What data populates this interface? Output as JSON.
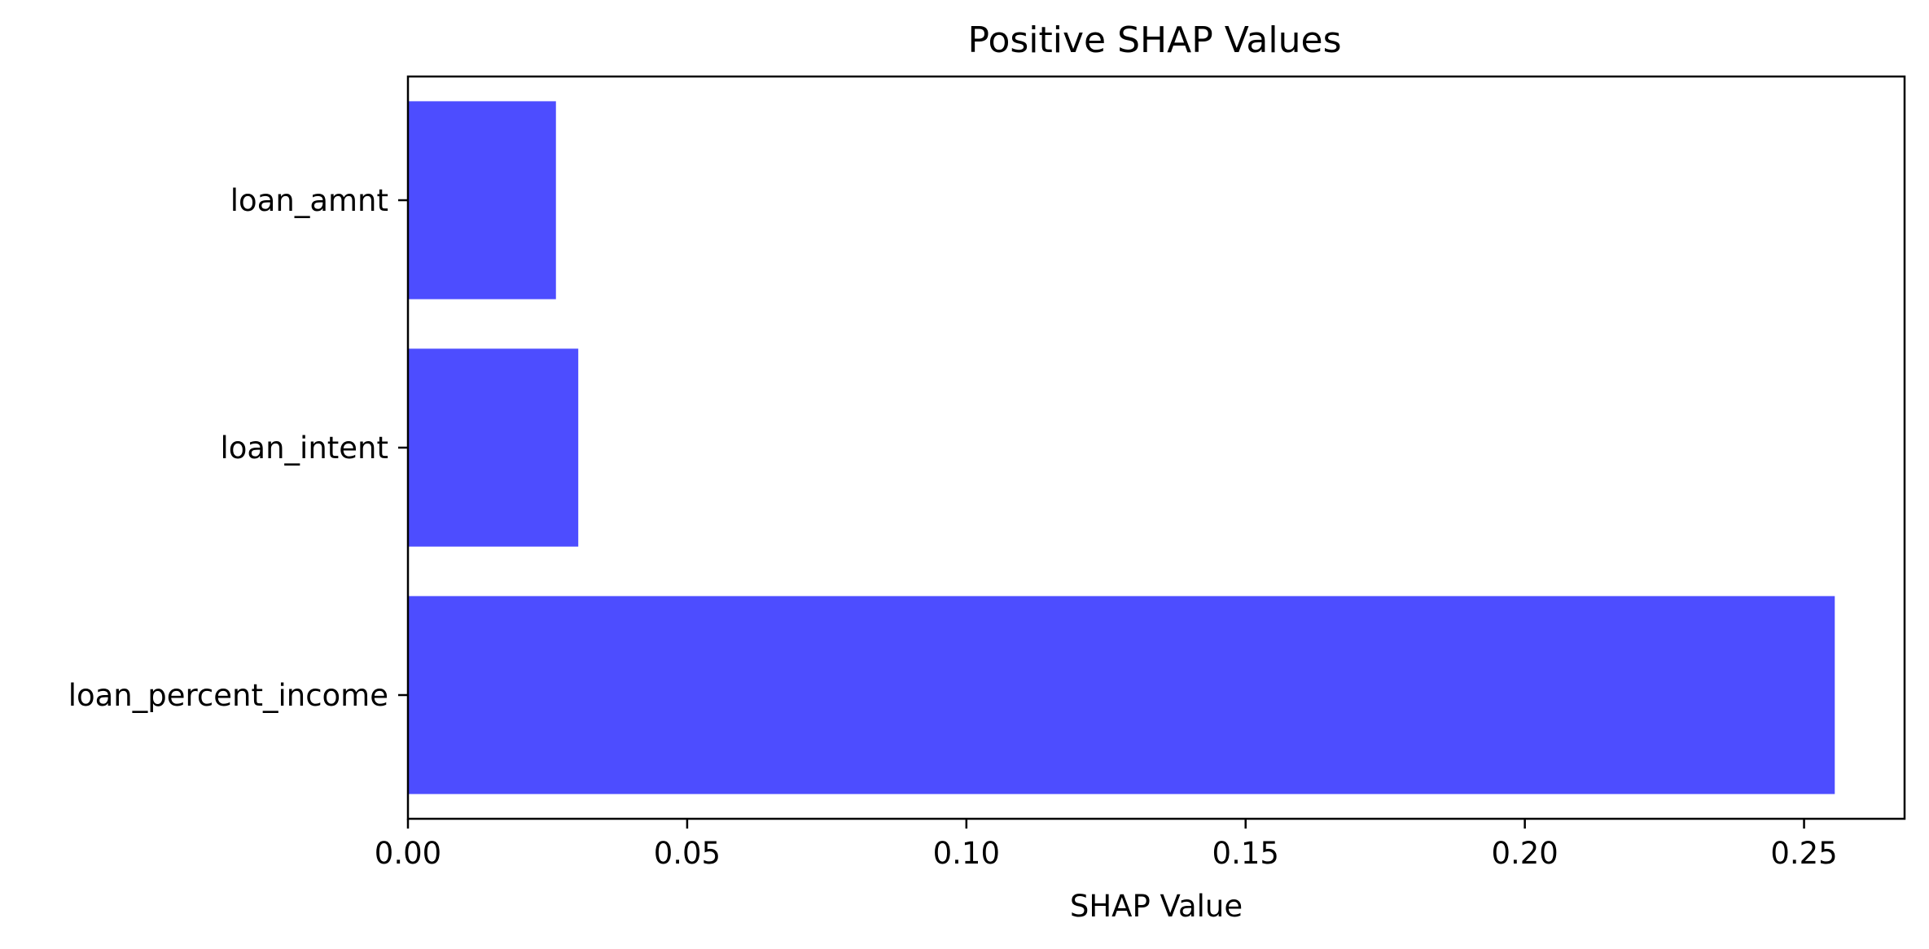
{
  "chart_data": {
    "type": "bar",
    "orientation": "horizontal",
    "title": "Positive SHAP Values",
    "xlabel": "SHAP Value",
    "ylabel": "",
    "categories": [
      "loan_amnt",
      "loan_intent",
      "loan_percent_income"
    ],
    "values": [
      0.0265,
      0.0305,
      0.2555
    ],
    "xlim": [
      0,
      0.268
    ],
    "xticks": [
      "0.00",
      "0.05",
      "0.10",
      "0.15",
      "0.20",
      "0.25"
    ],
    "xtick_values": [
      0,
      0.05,
      0.1,
      0.15,
      0.2,
      0.25
    ],
    "bar_color": "#4d4dff",
    "grid": false,
    "legend": "none"
  }
}
